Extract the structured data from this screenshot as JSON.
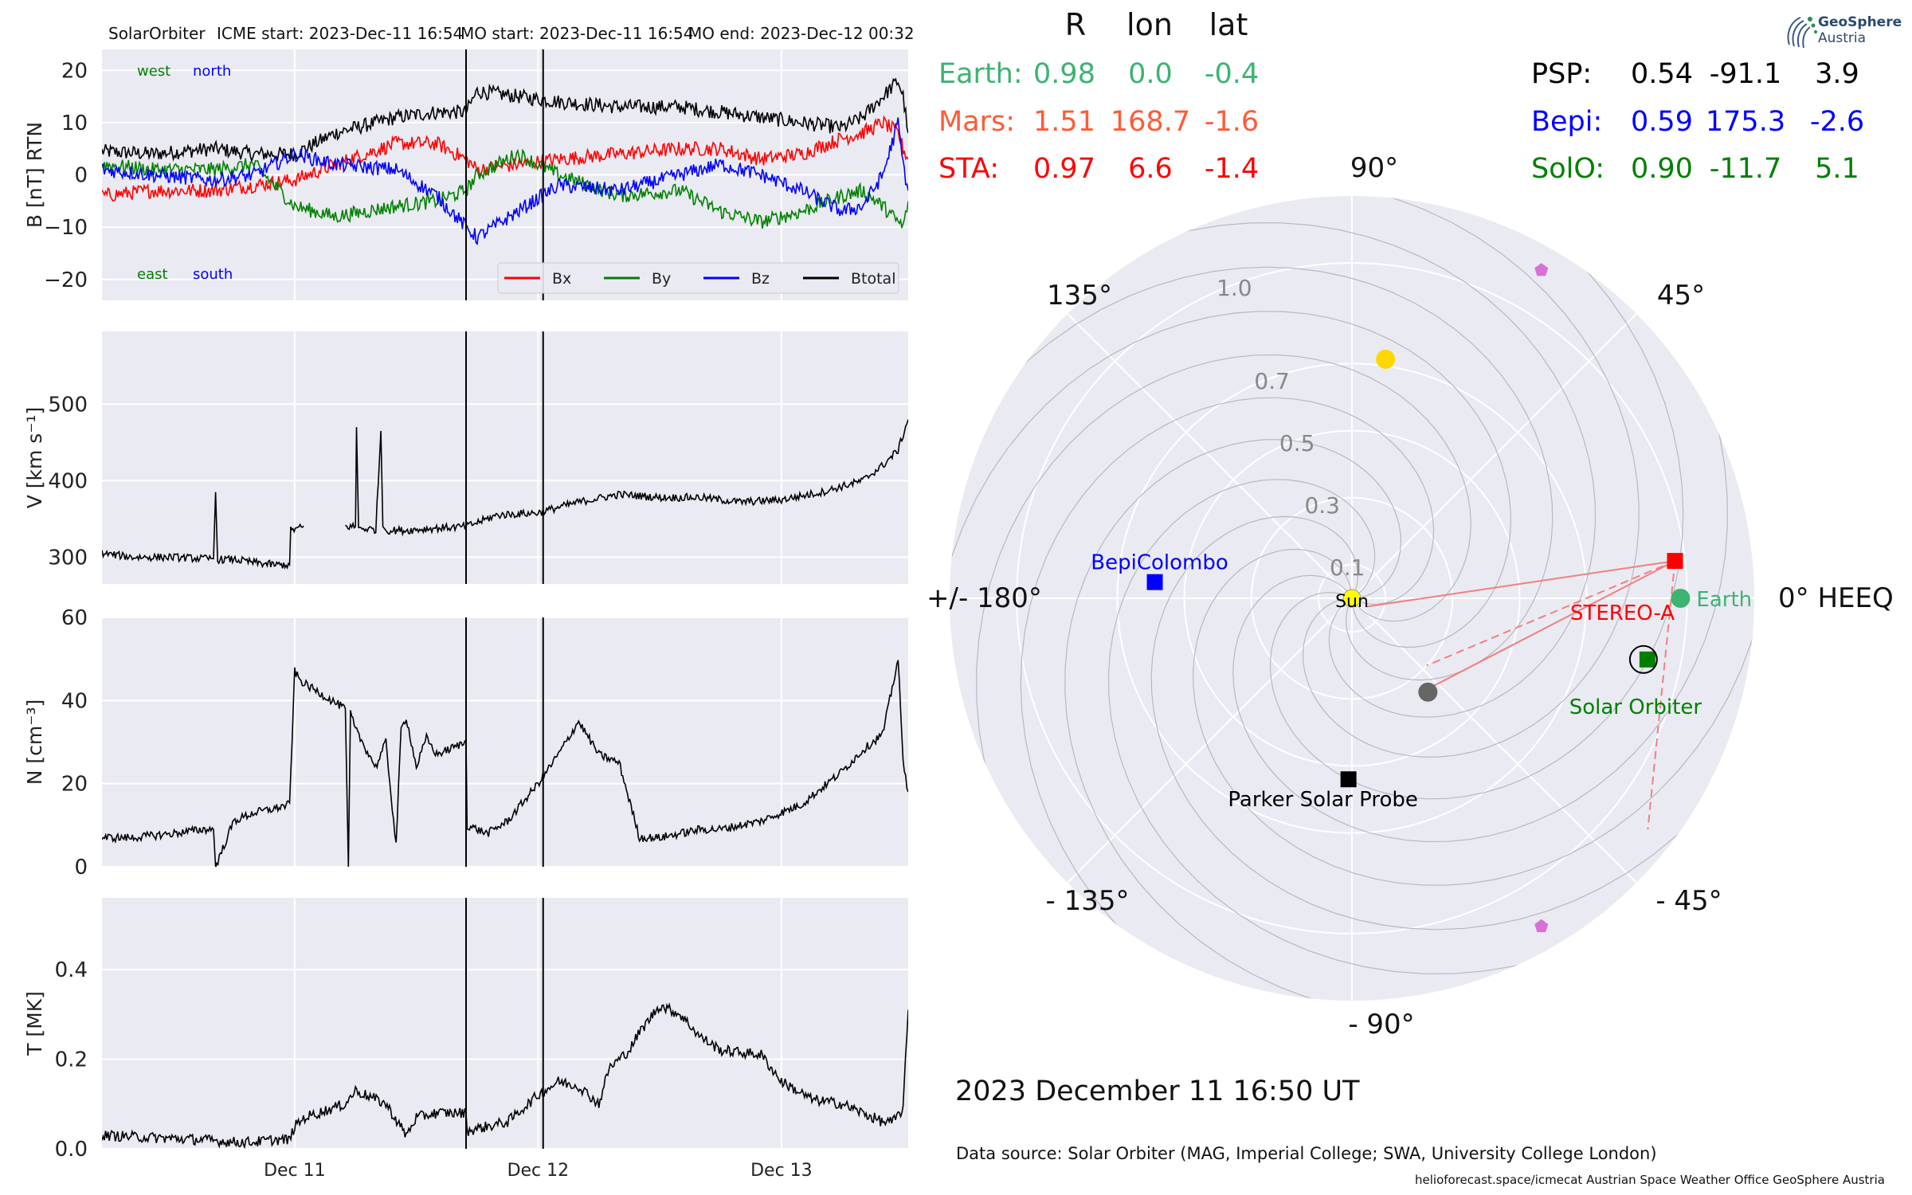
{
  "header": {
    "spacecraft": "SolarOrbiter",
    "icme_start": "ICME start: 2023-Dec-11 16:54",
    "mo_start": "MO start: 2023-Dec-11 16:54",
    "mo_end": "MO end: 2023-Dec-12 00:32"
  },
  "colors": {
    "panel_bg": "#eaeaf2",
    "bx": "#ff0000",
    "by": "#008000",
    "bz": "#0000ff",
    "btotal": "#000000",
    "earth": "#3cb371",
    "mars": "#ff5a36",
    "sta": "#ff0000",
    "psp": "#000000",
    "bepi": "#0000ff",
    "solo": "#008000",
    "sun": "#ffff00",
    "pentagon": "#da70d6",
    "gold": "#ffd700",
    "gray_dot": "#666666",
    "arc_pink": "#f08080"
  },
  "positions_table": {
    "col_headers": [
      "R",
      "lon",
      "lat"
    ],
    "left": [
      {
        "name": "Earth:",
        "R": "0.98",
        "lon": "0.0",
        "lat": "-0.4",
        "color": "#3cb371"
      },
      {
        "name": "Mars:",
        "R": "1.51",
        "lon": "168.7",
        "lat": "-1.6",
        "color": "#ff5a36"
      },
      {
        "name": "STA:",
        "R": "0.97",
        "lon": "6.6",
        "lat": "-1.4",
        "color": "#ff0000"
      }
    ],
    "right": [
      {
        "name": "PSP:",
        "R": "0.54",
        "lon": "-91.1",
        "lat": "3.9",
        "color": "#000000"
      },
      {
        "name": "Bepi:",
        "R": "0.59",
        "lon": "175.3",
        "lat": "-2.6",
        "color": "#0000ff"
      },
      {
        "name": "SolO:",
        "R": "0.90",
        "lon": "-11.7",
        "lat": "5.1",
        "color": "#008000"
      }
    ]
  },
  "polar": {
    "angle_labels": {
      "a90": "90°",
      "a45": "45°",
      "a135": "135°",
      "a180": "+/- 180°",
      "a0": "0° HEEQ",
      "am135": "- 135°",
      "am45": "- 45°",
      "am90": "- 90°"
    },
    "radial_labels": [
      "0.1",
      "0.3",
      "0.5",
      "0.7",
      "1.0"
    ],
    "radial_values": [
      0.1,
      0.3,
      0.5,
      0.7,
      1.0
    ],
    "rmax": 1.2,
    "bodies": [
      {
        "name": "Sun",
        "r": 0.0,
        "lon": 0.0,
        "marker": "circle",
        "color": "#ffff00",
        "label": "Sun"
      },
      {
        "name": "Earth",
        "r": 0.98,
        "lon": 0.0,
        "marker": "circle",
        "color": "#3cb371",
        "label": "Earth"
      },
      {
        "name": "STEREO-A",
        "r": 0.97,
        "lon": 6.6,
        "marker": "square",
        "color": "#ff0000",
        "label": "STEREO-A"
      },
      {
        "name": "Solar Orbiter",
        "r": 0.9,
        "lon": -11.7,
        "marker": "square",
        "color": "#008000",
        "label": "Solar Orbiter"
      },
      {
        "name": "BepiColombo",
        "r": 0.59,
        "lon": 175.3,
        "marker": "square",
        "color": "#0000ff",
        "label": "BepiColombo"
      },
      {
        "name": "Parker Solar Probe",
        "r": 0.54,
        "lon": -91.1,
        "marker": "square",
        "color": "#000000",
        "label": "Parker Solar Probe"
      },
      {
        "name": "gold-planet",
        "r": 0.72,
        "lon": 82.0,
        "marker": "circle",
        "color": "#ffd700",
        "label": ""
      },
      {
        "name": "gray-planet",
        "r": 0.36,
        "lon": -51.0,
        "marker": "circle",
        "color": "#666666",
        "label": ""
      },
      {
        "name": "pentagon-1",
        "r": 1.13,
        "lon": 60.0,
        "marker": "pentagon",
        "color": "#da70d6",
        "label": ""
      },
      {
        "name": "pentagon-2",
        "r": 1.13,
        "lon": -60.0,
        "marker": "pentagon",
        "color": "#da70d6",
        "label": ""
      }
    ]
  },
  "date_label": "2023 December 11  16:50 UT",
  "footer": {
    "datasource": "Data source: Solar Orbiter (MAG, Imperial College; SWA, University College London)",
    "credits": "helioforecast.space/icmecat   Austrian Space Weather Office   GeoSphere Austria"
  },
  "logo": {
    "line1": "GeoSphere",
    "line2": "Austria"
  },
  "chart_data": {
    "type": "line",
    "x_tick_labels": [
      "Dec 11",
      "Dec 12",
      "Dec 13"
    ],
    "x_ticks_hours": [
      24,
      48,
      72
    ],
    "x_range_hours": [
      5,
      84.5
    ],
    "event_lines_hours": [
      40.9,
      48.5
    ],
    "panels": [
      {
        "ylabel": "B [nT] RTN",
        "ylim": [
          -24,
          24
        ],
        "yticks": [
          -20,
          -10,
          0,
          10,
          20
        ],
        "ytick_labels": [
          "−20",
          "−10",
          "0",
          "10",
          "20"
        ],
        "annotations": [
          "west",
          "north",
          "east",
          "south"
        ],
        "legend": [
          "Bx",
          "By",
          "Bz",
          "Btotal"
        ],
        "series": [
          {
            "name": "Btotal",
            "x": [
              5,
              10,
              16,
              20,
              24,
              28,
              34,
              38,
              40.9,
              42,
              46,
              50,
              56,
              62,
              66,
              70,
              74,
              78,
              80,
              82,
              83.5,
              84,
              84.5
            ],
            "y": [
              4.5,
              4,
              5,
              4,
              4,
              8,
              11,
              12,
              12,
              16,
              15,
              14,
              13,
              13,
              12,
              11,
              10,
              9,
              11,
              15,
              18,
              15,
              8
            ]
          },
          {
            "name": "Bx",
            "x": [
              5,
              10,
              16,
              20,
              24,
              28,
              34,
              38,
              40.9,
              42,
              46,
              50,
              56,
              62,
              66,
              70,
              74,
              78,
              80,
              82,
              83.5,
              84,
              84.5
            ],
            "y": [
              -4,
              -3,
              -3,
              -2,
              -1,
              2,
              6,
              6,
              3,
              1,
              2,
              3,
              4,
              5,
              5,
              3,
              4,
              7,
              8,
              10,
              8,
              5,
              3
            ]
          },
          {
            "name": "By",
            "x": [
              5,
              10,
              16,
              20,
              24,
              28,
              34,
              38,
              40.9,
              42,
              46,
              50,
              56,
              62,
              66,
              70,
              74,
              78,
              80,
              82,
              83.5,
              84,
              84.5
            ],
            "y": [
              2,
              1,
              1,
              2,
              -6,
              -8,
              -6,
              -5,
              -3,
              0,
              4,
              0,
              -4,
              -3,
              -7,
              -9,
              -7,
              -4,
              -3,
              -6,
              -9,
              -10,
              -5
            ]
          },
          {
            "name": "Bz",
            "x": [
              5,
              10,
              16,
              20,
              24,
              28,
              34,
              38,
              40.9,
              42,
              46,
              50,
              56,
              62,
              66,
              70,
              74,
              78,
              80,
              82,
              83.5,
              84,
              84.5
            ],
            "y": [
              1,
              0,
              -1,
              0,
              4,
              2,
              1,
              -4,
              -10,
              -12,
              -7,
              -2,
              -3,
              0,
              2,
              0,
              -3,
              -7,
              -6,
              0,
              10,
              2,
              -3
            ]
          }
        ]
      },
      {
        "ylabel": "V [km s⁻¹]",
        "ylim": [
          265,
          595
        ],
        "yticks": [
          300,
          400,
          500
        ],
        "ytick_labels": [
          "300",
          "400",
          "500"
        ],
        "series": [
          {
            "name": "V",
            "x": [
              5,
              8,
              12,
              15,
              16,
              16.2,
              16.4,
              18,
              20,
              22,
              23.5,
              23.6,
              25,
              24.5,
              24.8,
              29,
              30,
              30.1,
              30.3,
              32,
              32.5,
              32.7,
              33,
              35,
              38,
              40.9,
              44,
              48,
              52,
              56,
              60,
              64,
              68,
              72,
              76,
              80,
              82,
              83.5,
              84.5
            ],
            "y": [
              305,
              300,
              300,
              298,
              298,
              385,
              297,
              297,
              293,
              290,
              290,
              335,
              340,
              null,
              null,
              340,
              340,
              470,
              338,
              336,
              465,
              340,
              335,
              335,
              338,
              340,
              355,
              358,
              372,
              382,
              378,
              378,
              372,
              375,
              385,
              400,
              420,
              440,
              480
            ]
          }
        ]
      },
      {
        "ylabel": "N [cm⁻³]",
        "ylim": [
          0,
          60
        ],
        "yticks": [
          0,
          20,
          40,
          60
        ],
        "ytick_labels": [
          "0",
          "20",
          "40",
          "60"
        ],
        "series": [
          {
            "name": "N",
            "x": [
              5,
              8,
              12,
              15,
              16,
              16.2,
              18,
              20,
              22,
              23.5,
              24,
              24.5,
              25,
              29,
              29.3,
              29.5,
              30,
              32,
              33,
              34,
              34.5,
              35,
              36,
              37,
              38,
              40.9,
              41,
              43,
              45,
              48,
              50,
              52,
              54,
              56,
              58,
              60,
              62,
              64,
              66,
              70,
              74,
              78,
              80,
              82,
              83.5,
              84,
              84.5
            ],
            "y": [
              7,
              7,
              8,
              9,
              9,
              0,
              11,
              13,
              14,
              15,
              47,
              45,
              44,
              38,
              0,
              37,
              33,
              24,
              30,
              5,
              33,
              36,
              24,
              31,
              27,
              30,
              10,
              8,
              11,
              20,
              27,
              35,
              27,
              25,
              7,
              7,
              8,
              9,
              9,
              11,
              15,
              23,
              28,
              32,
              50,
              25,
              18
            ]
          }
        ]
      },
      {
        "ylabel": "T [MK]",
        "ylim": [
          0,
          0.56
        ],
        "yticks": [
          0.0,
          0.2,
          0.4
        ],
        "ytick_labels": [
          "0.0",
          "0.2",
          "0.4"
        ],
        "series": [
          {
            "name": "T",
            "x": [
              5,
              10,
              15,
              18,
              20,
              22,
              23.5,
              24,
              25,
              29,
              30,
              33,
              35,
              36,
              38,
              40.9,
              41,
              45,
              48,
              50,
              52,
              54,
              55,
              57,
              58,
              60,
              62,
              64,
              66,
              70,
              72,
              75,
              78,
              80,
              82,
              83,
              84,
              84.5
            ],
            "y": [
              0.03,
              0.025,
              0.02,
              0.015,
              0.015,
              0.02,
              0.02,
              0.05,
              0.07,
              0.1,
              0.13,
              0.1,
              0.03,
              0.07,
              0.08,
              0.08,
              0.04,
              0.06,
              0.12,
              0.15,
              0.14,
              0.1,
              0.18,
              0.22,
              0.26,
              0.32,
              0.3,
              0.25,
              0.22,
              0.21,
              0.15,
              0.11,
              0.1,
              0.08,
              0.06,
              0.06,
              0.09,
              0.31
            ]
          }
        ]
      }
    ]
  }
}
